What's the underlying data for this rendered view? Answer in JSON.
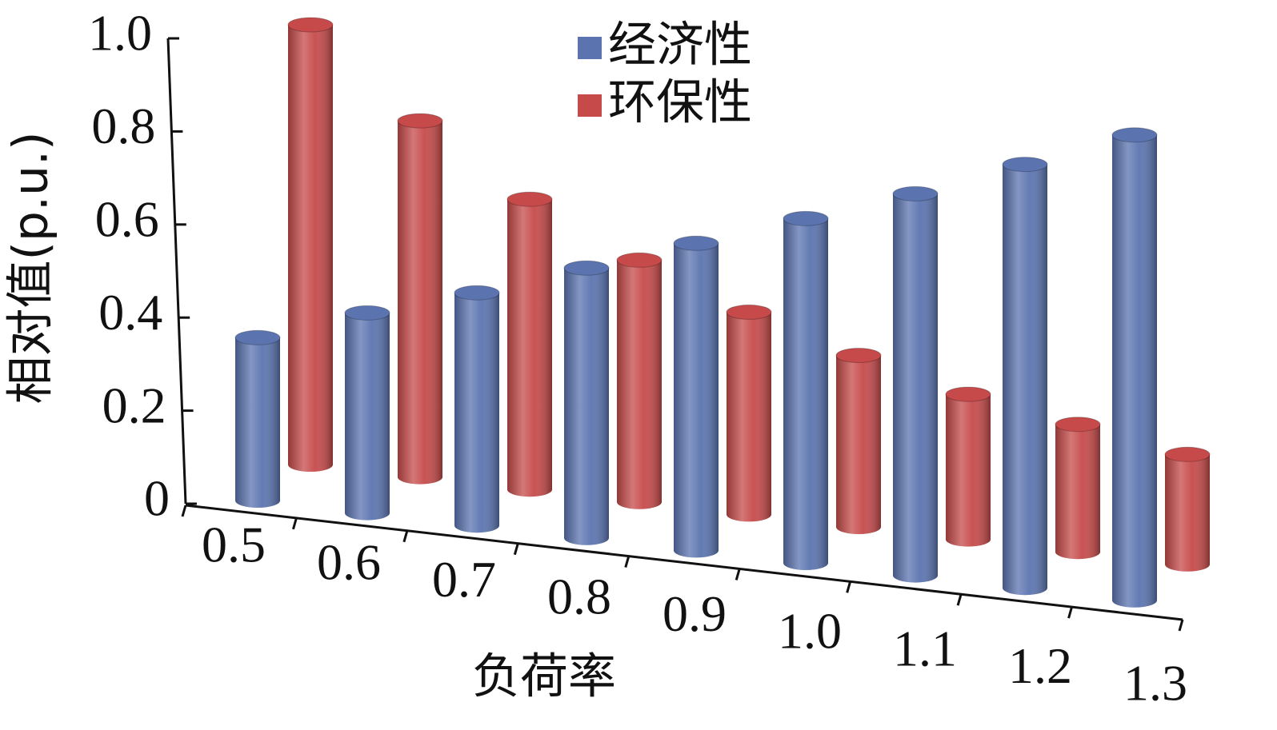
{
  "chart_data": {
    "type": "bar3d",
    "x_label": "负荷率",
    "y_label": "相对值(p.u.)",
    "categories": [
      "0.5",
      "0.6",
      "0.7",
      "0.8",
      "0.9",
      "1.0",
      "1.1",
      "1.2",
      "1.3"
    ],
    "series": [
      {
        "name": "经济性",
        "color": "#5b74b0",
        "values": [
          0.35,
          0.43,
          0.5,
          0.58,
          0.66,
          0.74,
          0.82,
          0.91,
          1.0
        ]
      },
      {
        "name": "环保性",
        "color": "#c64a4a",
        "values": [
          1.0,
          0.81,
          0.66,
          0.55,
          0.46,
          0.39,
          0.33,
          0.29,
          0.25
        ]
      }
    ],
    "ylim": [
      0,
      1
    ],
    "yticks": [
      0,
      0.2,
      0.4,
      0.6,
      0.8,
      {
        "value": 1,
        "label": "1.0"
      }
    ]
  }
}
